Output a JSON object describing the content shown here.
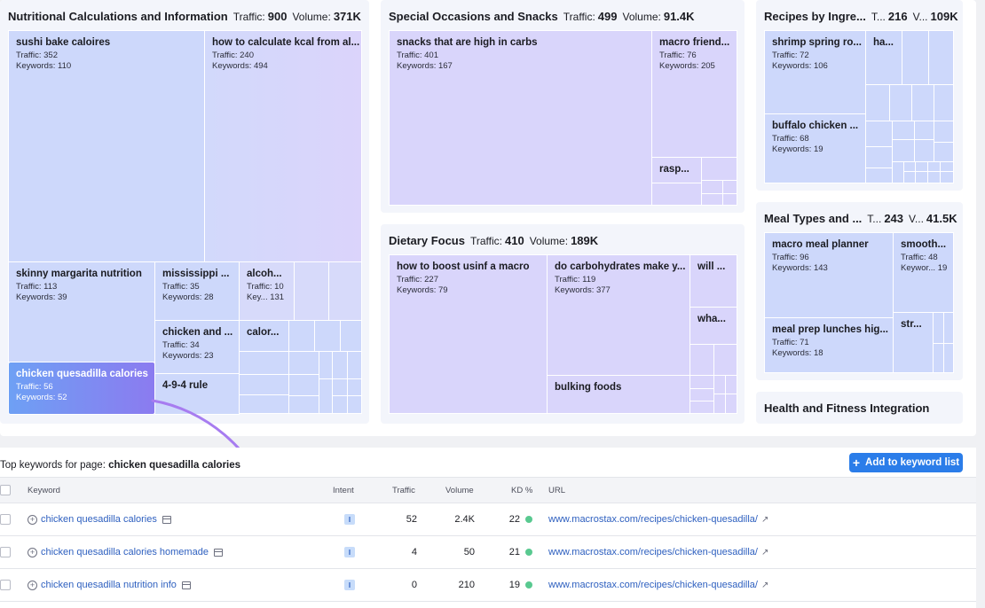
{
  "panels": {
    "nutri": {
      "title": "Nutritional Calculations and Information",
      "traffic_label": "Traffic:",
      "traffic": "900",
      "volume_label": "Volume:",
      "volume": "371K"
    },
    "special": {
      "title": "Special Occasions and Snacks",
      "traffic_label": "Traffic:",
      "traffic": "499",
      "volume_label": "Volume:",
      "volume": "91.4K"
    },
    "recipes": {
      "title": "Recipes by Ingre...",
      "traffic_label": "T...",
      "traffic": "216",
      "volume_label": "V...",
      "volume": "109K"
    },
    "dietary": {
      "title": "Dietary Focus",
      "traffic_label": "Traffic:",
      "traffic": "410",
      "volume_label": "Volume:",
      "volume": "189K"
    },
    "meal": {
      "title": "Meal Types and ...",
      "traffic_label": "T...",
      "traffic": "243",
      "volume_label": "V...",
      "volume": "41.5K"
    },
    "health": {
      "title": "Health and Fitness Integration"
    }
  },
  "tiles": {
    "sushi": {
      "title": "sushi bake caloires",
      "traffic": "Traffic: 352",
      "keywords": "Keywords: 110"
    },
    "kcal": {
      "title": "how to calculate kcal from al...",
      "traffic": "Traffic: 240",
      "keywords": "Keywords: 494"
    },
    "margarita": {
      "title": "skinny margarita nutrition",
      "traffic": "Traffic: 113",
      "keywords": "Keywords: 39"
    },
    "mississippi": {
      "title": "mississippi ...",
      "traffic": "Traffic: 35",
      "keywords": "Keywords: 28"
    },
    "alcohol": {
      "title": "alcoh...",
      "traffic": "Traffic: 10",
      "keywords": "Key...     131"
    },
    "chickenand": {
      "title": "chicken and ...",
      "traffic": "Traffic: 34",
      "keywords": "Keywords: 23"
    },
    "calor": {
      "title": "calor..."
    },
    "quesadilla": {
      "title": "chicken quesadilla calories",
      "traffic": "Traffic: 56",
      "keywords": "Keywords: 52"
    },
    "rule494": {
      "title": "4-9-4 rule"
    },
    "snacks": {
      "title": "snacks that are high in carbs",
      "traffic": "Traffic: 401",
      "keywords": "Keywords: 167"
    },
    "macrofriend": {
      "title": "macro friend...",
      "traffic": "Traffic: 76",
      "keywords": "Keywords: 205"
    },
    "rasp": {
      "title": "rasp..."
    },
    "shrimp": {
      "title": "shrimp spring ro...",
      "traffic": "Traffic: 72",
      "keywords": "Keywords: 106"
    },
    "ha": {
      "title": "ha..."
    },
    "buffalo": {
      "title": "buffalo chicken ...",
      "traffic": "Traffic: 68",
      "keywords": "Keywords: 19"
    },
    "boost": {
      "title": "how to boost usinf a macro",
      "traffic": "Traffic: 227",
      "keywords": "Keywords: 79"
    },
    "carbs": {
      "title": "do carbohydrates make y...",
      "traffic": "Traffic: 119",
      "keywords": "Keywords: 377"
    },
    "will": {
      "title": "will ..."
    },
    "wha": {
      "title": "wha..."
    },
    "bulking": {
      "title": "bulking foods"
    },
    "macroplanner": {
      "title": "macro meal planner",
      "traffic": "Traffic: 96",
      "keywords": "Keywords: 143"
    },
    "smooth": {
      "title": "smooth...",
      "traffic": "Traffic: 48",
      "keywords": "Keywor...   19"
    },
    "mealprep": {
      "title": "meal prep lunches hig...",
      "traffic": "Traffic: 71",
      "keywords": "Keywords: 18"
    },
    "str": {
      "title": "str..."
    }
  },
  "table": {
    "heading_prefix": "Top keywords for page:",
    "heading_page": "chicken quesadilla calories",
    "add_button": "Add to keyword list",
    "add_icon": "+",
    "columns": {
      "keyword": "Keyword",
      "intent": "Intent",
      "traffic": "Traffic",
      "volume": "Volume",
      "kd": "KD %",
      "url": "URL"
    },
    "rows": [
      {
        "keyword": "chicken quesadilla calories",
        "intent": "I",
        "traffic": "52",
        "volume": "2.4K",
        "kd": "22",
        "url": "www.macrostax.com/recipes/chicken-quesadilla/"
      },
      {
        "keyword": "chicken quesadilla calories homemade",
        "intent": "I",
        "traffic": "4",
        "volume": "50",
        "kd": "21",
        "url": "www.macrostax.com/recipes/chicken-quesadilla/"
      },
      {
        "keyword": "chicken quesadilla nutrition info",
        "intent": "I",
        "traffic": "0",
        "volume": "210",
        "kd": "19",
        "url": "www.macrostax.com/recipes/chicken-quesadilla/"
      }
    ]
  },
  "colors": {
    "accent": "#2b7de9",
    "arrow": "#a77cf0",
    "kd_easy": "#59c990"
  }
}
